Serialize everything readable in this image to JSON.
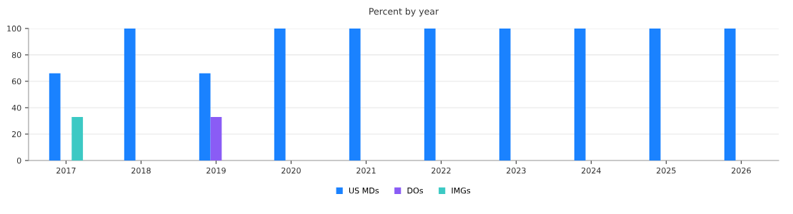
{
  "chart_data": {
    "type": "bar",
    "title": "Percent by year",
    "categories": [
      "2017",
      "2018",
      "2019",
      "2020",
      "2021",
      "2022",
      "2023",
      "2024",
      "2025",
      "2026"
    ],
    "series": [
      {
        "name": "US MDs",
        "color": "#1a82ff",
        "values": [
          66,
          100,
          66,
          100,
          100,
          100,
          100,
          100,
          100,
          100
        ]
      },
      {
        "name": "DOs",
        "color": "#8a5cf5",
        "values": [
          0,
          0,
          33,
          0,
          0,
          0,
          0,
          0,
          0,
          0
        ]
      },
      {
        "name": "IMGs",
        "color": "#3cc9c4",
        "values": [
          33,
          0,
          0,
          0,
          0,
          0,
          0,
          0,
          0,
          0
        ]
      }
    ],
    "ylim": [
      0,
      100
    ],
    "yticks": [
      0,
      20,
      40,
      60,
      80,
      100
    ],
    "grid": "y",
    "legend": "bottom"
  }
}
